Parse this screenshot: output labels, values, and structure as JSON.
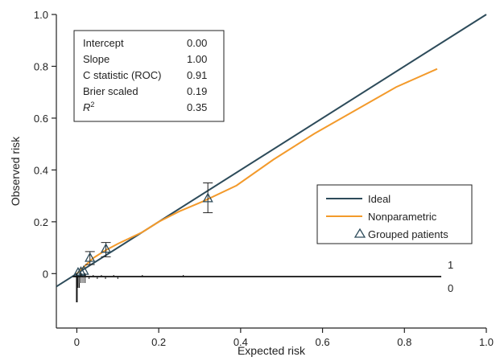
{
  "chart_data": {
    "type": "line",
    "xlabel": "Expected risk",
    "ylabel": "Observed risk",
    "xlim": [
      -0.05,
      1.0
    ],
    "ylim": [
      -0.21,
      1.0
    ],
    "xticks": [
      "0",
      "0.2",
      "0.4",
      "0.6",
      "0.8",
      "1.0"
    ],
    "xtick_values": [
      0,
      0.2,
      0.4,
      0.6,
      0.8,
      1.0
    ],
    "yticks": [
      "0",
      "0.2",
      "0.4",
      "0.6",
      "0.8",
      "1.0"
    ],
    "ytick_values": [
      0,
      0.2,
      0.4,
      0.6,
      0.8,
      1.0
    ],
    "colors": {
      "ideal": "#2d4b5a",
      "nonparametric": "#f39a2b",
      "grouped": "#2d4b5a",
      "axis": "#222222"
    },
    "series": [
      {
        "name": "Ideal",
        "x": [
          -0.05,
          1.0
        ],
        "y": [
          -0.05,
          1.0
        ]
      },
      {
        "name": "Nonparametric",
        "x": [
          0.0,
          0.02,
          0.04,
          0.07,
          0.1,
          0.16,
          0.2,
          0.25,
          0.31,
          0.39,
          0.48,
          0.58,
          0.68,
          0.78,
          0.88
        ],
        "y": [
          0.0,
          0.03,
          0.06,
          0.09,
          0.115,
          0.16,
          0.2,
          0.24,
          0.28,
          0.34,
          0.44,
          0.54,
          0.63,
          0.72,
          0.79
        ]
      }
    ],
    "grouped_patients": {
      "name": "Grouped patients",
      "points": [
        {
          "x": 0.003,
          "y": 0.003,
          "lo": 0.0,
          "hi": 0.007
        },
        {
          "x": 0.01,
          "y": 0.006,
          "lo": 0.003,
          "hi": 0.01
        },
        {
          "x": 0.017,
          "y": 0.01,
          "lo": 0.005,
          "hi": 0.015
        },
        {
          "x": 0.032,
          "y": 0.06,
          "lo": 0.035,
          "hi": 0.085
        },
        {
          "x": 0.071,
          "y": 0.095,
          "lo": 0.065,
          "hi": 0.12
        },
        {
          "x": 0.32,
          "y": 0.29,
          "lo": 0.235,
          "hi": 0.35
        }
      ]
    },
    "rug": {
      "label_1": "1",
      "label_0": "0",
      "x_range": [
        -0.01,
        0.89
      ],
      "ticks_up": [
        0.0,
        0.01,
        0.02,
        0.04,
        0.06,
        0.09,
        0.16,
        0.26
      ],
      "ticks_down": [
        0.0,
        0.003,
        0.006,
        0.01,
        0.015,
        0.02,
        0.03,
        0.05,
        0.07,
        0.1
      ]
    },
    "stats": [
      {
        "label": "Intercept",
        "value": "0.00"
      },
      {
        "label": "Slope",
        "value": "1.00"
      },
      {
        "label": "C statistic (ROC)",
        "value": "0.91"
      },
      {
        "label": "Brier scaled",
        "value": "0.19"
      },
      {
        "label": "R",
        "label_sup": "2",
        "value": "0.35"
      }
    ],
    "legend": {
      "position": "bottom-right",
      "items": [
        "Ideal",
        "Nonparametric",
        "Grouped patients"
      ]
    }
  }
}
